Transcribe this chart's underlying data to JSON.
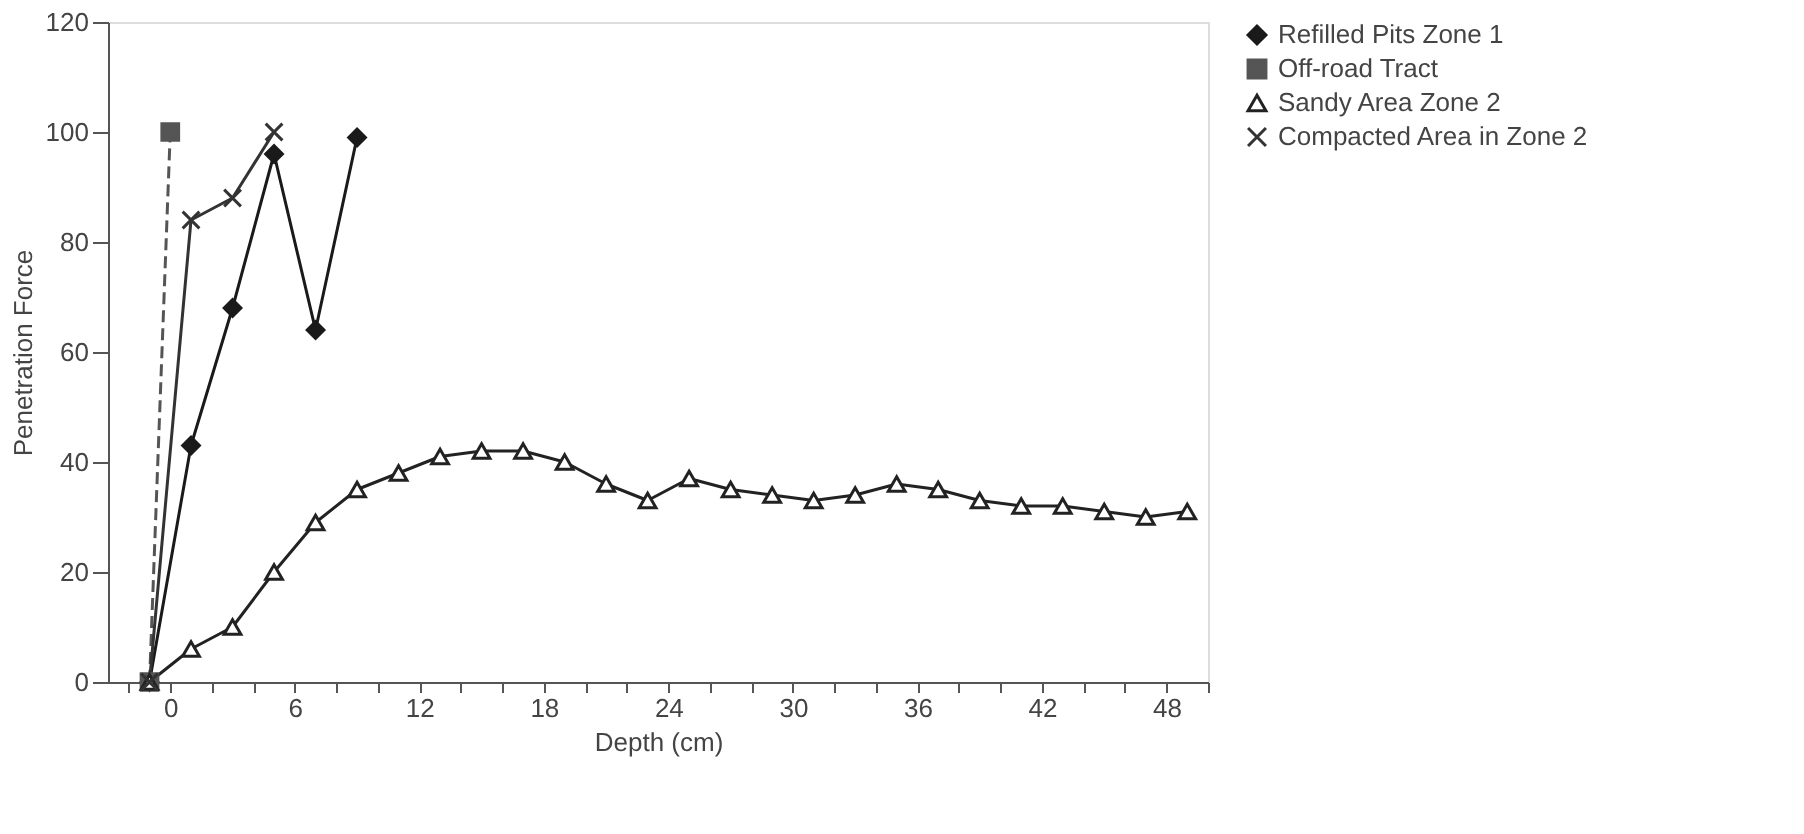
{
  "chart_data": {
    "type": "line",
    "xlabel": "Depth (cm)",
    "ylabel": "Penetration Force",
    "xlim": [
      -3,
      50
    ],
    "ylim": [
      0,
      120
    ],
    "xticks": [
      {
        "value": -2,
        "label": null
      },
      0,
      {
        "value": 2,
        "label": null
      },
      {
        "value": 4,
        "label": null
      },
      6,
      {
        "value": 8,
        "label": null
      },
      {
        "value": 10,
        "label": null
      },
      12,
      {
        "value": 14,
        "label": null
      },
      {
        "value": 16,
        "label": null
      },
      18,
      {
        "value": 20,
        "label": null
      },
      {
        "value": 22,
        "label": null
      },
      24,
      {
        "value": 26,
        "label": null
      },
      {
        "value": 28,
        "label": null
      },
      30,
      {
        "value": 32,
        "label": null
      },
      {
        "value": 34,
        "label": null
      },
      36,
      {
        "value": 38,
        "label": null
      },
      {
        "value": 40,
        "label": null
      },
      42,
      {
        "value": 44,
        "label": null
      },
      {
        "value": 46,
        "label": null
      },
      48,
      {
        "value": 50,
        "label": null
      }
    ],
    "yticks": [
      0,
      20,
      40,
      60,
      80,
      100,
      120
    ],
    "grid": false,
    "legend": "right",
    "series": [
      {
        "name": "Refilled Pits Zone 1",
        "color": "#1a1a1a",
        "marker": "diamond",
        "line_style": "solid",
        "x": [
          -1,
          1,
          3,
          5,
          7,
          9
        ],
        "values": [
          0,
          43,
          68,
          96,
          64,
          99
        ]
      },
      {
        "name": "Off-road Tract",
        "color": "#555555",
        "marker": "square",
        "line_style": "dashed",
        "x": [
          -1,
          0
        ],
        "values": [
          0,
          100
        ]
      },
      {
        "name": "Sandy Area Zone 2",
        "color": "#222222",
        "marker": "triangle",
        "line_style": "solid",
        "x": [
          -1,
          1,
          3,
          5,
          7,
          9,
          11,
          13,
          15,
          17,
          19,
          21,
          23,
          25,
          27,
          29,
          31,
          33,
          35,
          37,
          39,
          41,
          43,
          45,
          47,
          49
        ],
        "values": [
          0,
          6,
          10,
          20,
          29,
          35,
          38,
          41,
          42,
          42,
          40,
          36,
          33,
          37,
          35,
          34,
          33,
          34,
          36,
          35,
          33,
          32,
          32,
          31,
          30,
          31
        ]
      },
      {
        "name": "Compacted Area in Zone 2",
        "color": "#333333",
        "marker": "cross",
        "line_style": "solid",
        "x": [
          -1,
          1,
          3,
          5
        ],
        "values": [
          0,
          84,
          88,
          100
        ]
      }
    ]
  }
}
